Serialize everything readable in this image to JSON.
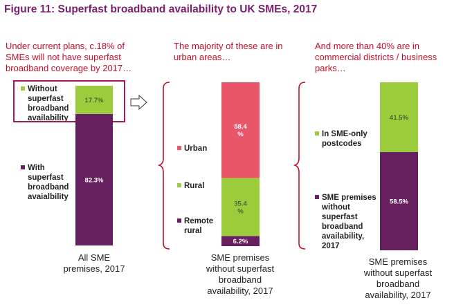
{
  "title": "Figure 11: Superfast broadband availability to UK SMEs, 2017",
  "colors": {
    "green": "#9bcc3c",
    "purple": "#66205f",
    "red": "#e8566a",
    "title": "#7b1f6e",
    "annotation": "#c0102a",
    "bracket": "#c0102a"
  },
  "annotations": {
    "col1": [
      "Under current plans, c.18% of",
      "SMEs will not have superfast",
      "broadband coverage by 2017…"
    ],
    "col2": [
      "The majority of these are in",
      "urban areas…"
    ],
    "col3": [
      "And more than 40% are in",
      "commercial districts  / business",
      "parks…"
    ]
  },
  "chart_data": [
    {
      "type": "bar",
      "stacked": true,
      "category": [
        "All SME",
        "premises, 2017"
      ],
      "series": [
        {
          "name": [
            "With",
            "superfast",
            "broadband",
            "avaialbility"
          ],
          "value": 82.3,
          "label": "82.3%",
          "color": "#66205f"
        },
        {
          "name": [
            "Without",
            "superfast",
            "broadband",
            "availability"
          ],
          "value": 17.7,
          "label": "17.7%",
          "color": "#9bcc3c"
        }
      ]
    },
    {
      "type": "bar",
      "stacked": true,
      "category": [
        "SME premises",
        "without superfast",
        "broadband",
        "availability, 2017"
      ],
      "series": [
        {
          "name": [
            "Remote",
            "rural"
          ],
          "value": 6.2,
          "label": [
            "6.2%"
          ],
          "color": "#66205f"
        },
        {
          "name": [
            "Rural"
          ],
          "value": 35.4,
          "label": [
            "35.4",
            "%"
          ],
          "color": "#9bcc3c"
        },
        {
          "name": [
            "Urban"
          ],
          "value": 58.4,
          "label": [
            "58.4",
            "%"
          ],
          "color": "#e8566a"
        }
      ]
    },
    {
      "type": "bar",
      "stacked": true,
      "category": [
        "SME premises",
        "without superfast",
        "broadband",
        "availability, 2017"
      ],
      "series": [
        {
          "name": [
            "SME premises",
            "without",
            "superfast",
            "broadband",
            "availability,",
            "2017"
          ],
          "value": 58.5,
          "label": "58.5%",
          "color": "#66205f"
        },
        {
          "name": [
            "In SME-only",
            "postcodes"
          ],
          "value": 41.5,
          "label": "41.5%",
          "color": "#9bcc3c"
        }
      ]
    }
  ]
}
